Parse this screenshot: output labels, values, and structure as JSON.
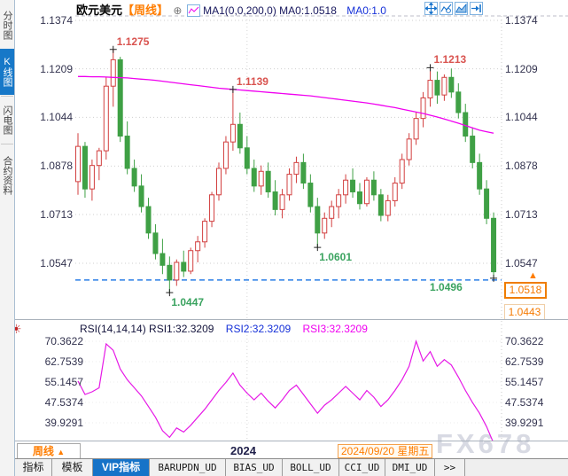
{
  "colors": {
    "accent_orange": "#ff7d00",
    "accent_blue": "#1874cd",
    "candle_up": "#d23f3f",
    "candle_down": "#3fa045",
    "ma_line": "#f000f0",
    "rsi_line": "#e619e6",
    "support_line": "#2b7fe8",
    "annotation_up": "#d9534f",
    "annotation_down": "#3aa35f",
    "axis_text": "#32324e"
  },
  "sidebar": {
    "items": [
      {
        "label": "分时图",
        "selected": false
      },
      {
        "label": "K线图",
        "selected": true
      },
      {
        "label": "闪电图",
        "selected": false
      },
      {
        "label": "合约资料",
        "selected": false
      }
    ]
  },
  "header": {
    "symbol": "欧元美元",
    "period": "【周线】",
    "plus_glyph": "⊕",
    "ma_line1": "MA1(0,0,200,0) MA0:1.0518",
    "ma_line2": "MA0:1.0",
    "icons": [
      "move-crosshair-icon",
      "zoom-chart-icon",
      "scale-chart-icon",
      "goto-latest-icon"
    ]
  },
  "chart_data": {
    "type": "candlestick",
    "title": "欧元美元 周线 EUR/USD Weekly",
    "y_axis_labels": [
      "1.1374",
      "1.1209",
      "1.1044",
      "1.0878",
      "1.0713",
      "1.0547"
    ],
    "y_axis_values": [
      1.1374,
      1.1209,
      1.1044,
      1.0878,
      1.0713,
      1.0547
    ],
    "x_year_label": "2024",
    "year_gridline_index": 24,
    "current_price": "1.0518",
    "secondary_price": "1.0443",
    "up_arrow_glyph": "▲",
    "support_line_price": 1.049,
    "candles": [
      [
        1.0825,
        1.099,
        1.078,
        1.0945
      ],
      [
        1.0945,
        1.096,
        1.077,
        1.08
      ],
      [
        1.08,
        1.09,
        1.076,
        1.088
      ],
      [
        1.088,
        1.094,
        1.083,
        1.093
      ],
      [
        1.093,
        1.118,
        1.09,
        1.115
      ],
      [
        1.115,
        1.1275,
        1.108,
        1.124
      ],
      [
        1.124,
        1.125,
        1.096,
        1.098
      ],
      [
        1.098,
        1.103,
        1.085,
        1.087
      ],
      [
        1.087,
        1.09,
        1.079,
        1.081
      ],
      [
        1.081,
        1.085,
        1.072,
        1.074
      ],
      [
        1.074,
        1.077,
        1.063,
        1.065
      ],
      [
        1.065,
        1.068,
        1.056,
        1.058
      ],
      [
        1.058,
        1.063,
        1.051,
        1.054
      ],
      [
        1.054,
        1.057,
        1.0447,
        1.049
      ],
      [
        1.049,
        1.056,
        1.047,
        1.055
      ],
      [
        1.055,
        1.059,
        1.05,
        1.052
      ],
      [
        1.052,
        1.06,
        1.051,
        1.059
      ],
      [
        1.059,
        1.064,
        1.055,
        1.062
      ],
      [
        1.062,
        1.07,
        1.06,
        1.069
      ],
      [
        1.069,
        1.079,
        1.067,
        1.078
      ],
      [
        1.078,
        1.089,
        1.076,
        1.087
      ],
      [
        1.087,
        1.098,
        1.085,
        1.096
      ],
      [
        1.096,
        1.1139,
        1.093,
        1.102
      ],
      [
        1.102,
        1.106,
        1.092,
        1.094
      ],
      [
        1.094,
        1.098,
        1.085,
        1.087
      ],
      [
        1.087,
        1.09,
        1.079,
        1.081
      ],
      [
        1.081,
        1.088,
        1.078,
        1.086
      ],
      [
        1.086,
        1.089,
        1.077,
        1.079
      ],
      [
        1.079,
        1.083,
        1.071,
        1.073
      ],
      [
        1.073,
        1.08,
        1.07,
        1.078
      ],
      [
        1.078,
        1.087,
        1.076,
        1.085
      ],
      [
        1.085,
        1.091,
        1.082,
        1.089
      ],
      [
        1.089,
        1.092,
        1.08,
        1.082
      ],
      [
        1.082,
        1.085,
        1.072,
        1.074
      ],
      [
        1.074,
        1.077,
        1.0601,
        1.065
      ],
      [
        1.065,
        1.072,
        1.063,
        1.07
      ],
      [
        1.07,
        1.076,
        1.067,
        1.074
      ],
      [
        1.074,
        1.08,
        1.07,
        1.078
      ],
      [
        1.078,
        1.085,
        1.075,
        1.083
      ],
      [
        1.083,
        1.087,
        1.077,
        1.079
      ],
      [
        1.079,
        1.082,
        1.073,
        1.075
      ],
      [
        1.075,
        1.084,
        1.074,
        1.083
      ],
      [
        1.083,
        1.086,
        1.076,
        1.078
      ],
      [
        1.078,
        1.08,
        1.069,
        1.071
      ],
      [
        1.071,
        1.078,
        1.069,
        1.076
      ],
      [
        1.076,
        1.084,
        1.074,
        1.082
      ],
      [
        1.082,
        1.092,
        1.08,
        1.09
      ],
      [
        1.09,
        1.099,
        1.088,
        1.097
      ],
      [
        1.097,
        1.106,
        1.095,
        1.104
      ],
      [
        1.104,
        1.113,
        1.101,
        1.111
      ],
      [
        1.111,
        1.1213,
        1.108,
        1.117
      ],
      [
        1.117,
        1.12,
        1.109,
        1.112
      ],
      [
        1.112,
        1.119,
        1.11,
        1.118
      ],
      [
        1.118,
        1.121,
        1.111,
        1.113
      ],
      [
        1.113,
        1.116,
        1.104,
        1.106
      ],
      [
        1.106,
        1.109,
        1.096,
        1.098
      ],
      [
        1.098,
        1.101,
        1.087,
        1.089
      ],
      [
        1.089,
        1.092,
        1.078,
        1.08
      ],
      [
        1.08,
        1.083,
        1.068,
        1.07
      ],
      [
        1.07,
        1.072,
        1.0496,
        1.0518
      ]
    ],
    "ma200": [
      1.1183,
      1.1183,
      1.1182,
      1.1182,
      1.1181,
      1.118,
      1.1179,
      1.1178,
      1.1176,
      1.1174,
      1.1172,
      1.117,
      1.1167,
      1.1164,
      1.1161,
      1.1158,
      1.1155,
      1.1152,
      1.1149,
      1.1146,
      1.1143,
      1.1141,
      1.1139,
      1.1137,
      1.1135,
      1.1133,
      1.1131,
      1.1129,
      1.1127,
      1.1125,
      1.1123,
      1.1121,
      1.1119,
      1.1117,
      1.1114,
      1.1111,
      1.1108,
      1.1105,
      1.1102,
      1.1099,
      1.1096,
      1.1093,
      1.1089,
      1.1085,
      1.1081,
      1.1077,
      1.1072,
      1.1067,
      1.1062,
      1.1057,
      1.1051,
      1.1045,
      1.1038,
      1.1031,
      1.1024,
      1.1016,
      1.1008,
      1.1,
      1.0995,
      1.099
    ],
    "annotations": [
      {
        "text": "1.1275",
        "index": 5,
        "at": "high",
        "tone": "up",
        "side": "right-above"
      },
      {
        "text": "1.1139",
        "index": 22,
        "at": "high",
        "tone": "up",
        "side": "right-above"
      },
      {
        "text": "1.1213",
        "index": 50,
        "at": "high",
        "tone": "up",
        "side": "right-above"
      },
      {
        "text": "1.0447",
        "index": 13,
        "at": "low",
        "tone": "down",
        "side": "below"
      },
      {
        "text": "1.0601",
        "index": 34,
        "at": "low",
        "tone": "down",
        "side": "below"
      },
      {
        "text": "1.0496",
        "index": 59,
        "at": "low",
        "tone": "down",
        "side": "left"
      }
    ]
  },
  "rsi": {
    "params_label": "RSI(14,14,14) RSI1:32.3209",
    "rsi2_label": "RSI2:32.3209",
    "rsi3_label": "RSI3:32.3209",
    "axis_labels": [
      "70.3622",
      "62.7539",
      "55.1457",
      "47.5374",
      "39.9291"
    ],
    "axis_values": [
      70.3622,
      62.7539,
      55.1457,
      47.5374,
      39.9291
    ],
    "values": [
      55.5,
      50.5,
      51.5,
      53.0,
      69.4,
      67.0,
      60.0,
      56.0,
      53.0,
      50.0,
      46.0,
      42.0,
      37.0,
      34.5,
      38.0,
      36.5,
      39.0,
      42.0,
      45.0,
      48.5,
      52.0,
      55.0,
      58.5,
      54.0,
      51.0,
      48.5,
      51.0,
      48.0,
      45.5,
      48.5,
      52.0,
      54.0,
      50.5,
      47.0,
      43.5,
      46.5,
      48.5,
      51.0,
      53.5,
      51.0,
      48.5,
      52.0,
      49.5,
      46.0,
      48.5,
      52.0,
      56.0,
      61.0,
      70.3622,
      63.0,
      66.5,
      61.0,
      63.5,
      61.5,
      57.0,
      52.0,
      47.5,
      43.5,
      38.5,
      32.3209
    ]
  },
  "bottom": {
    "period_label": "周线",
    "period_arrow": "▲",
    "year_label": "2024",
    "date_label": "2024/09/20 星期五",
    "watermark": "FX678",
    "tabs": [
      {
        "label": "指标",
        "selected": false,
        "cn": true
      },
      {
        "label": "模板",
        "selected": false,
        "cn": true
      },
      {
        "label": "VIP指标",
        "selected": true,
        "cn": true
      },
      {
        "label": "BARUPDN_UD",
        "selected": false,
        "cn": false
      },
      {
        "label": "BIAS_UD",
        "selected": false,
        "cn": false
      },
      {
        "label": "BOLL_UD",
        "selected": false,
        "cn": false
      },
      {
        "label": "CCI_UD",
        "selected": false,
        "cn": false
      },
      {
        "label": "DMI_UD",
        "selected": false,
        "cn": false
      },
      {
        "label": ">>",
        "selected": false,
        "cn": false
      }
    ]
  }
}
